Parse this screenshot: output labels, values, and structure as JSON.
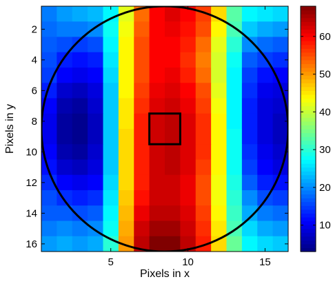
{
  "chart_data": {
    "type": "heatmap",
    "title": "",
    "xlabel": "Pixels in x",
    "ylabel": "Pixels in y",
    "xlim": [
      0.5,
      16.5
    ],
    "ylim": [
      0.5,
      16.5
    ],
    "y_direction": "reversed",
    "x_ticks": [
      5,
      10,
      15
    ],
    "y_ticks": [
      2,
      4,
      6,
      8,
      10,
      12,
      14,
      16
    ],
    "colormap": "jet",
    "clim": [
      3,
      68
    ],
    "colorbar_ticks": [
      10,
      20,
      30,
      40,
      50,
      60
    ],
    "colors": {
      "axis": "#000000",
      "overlay": "#000000"
    },
    "grid": false,
    "overlays": {
      "circle": {
        "center_x": 8.5,
        "center_y": 8.5,
        "radius": 8
      },
      "square": {
        "x_min": 7.5,
        "x_max": 9.5,
        "y_min": 7.5,
        "y_max": 9.5
      }
    },
    "values": [
      [
        19,
        21,
        22,
        23,
        27,
        42,
        53,
        60,
        62,
        60,
        56,
        46,
        33,
        27,
        26,
        25
      ],
      [
        18,
        19,
        19,
        20,
        28,
        43,
        54,
        60,
        61,
        59,
        55,
        44,
        32,
        24,
        22,
        21
      ],
      [
        17,
        16,
        15,
        16,
        27,
        44,
        55,
        60,
        60,
        58,
        53,
        42,
        30,
        20,
        18,
        17
      ],
      [
        16,
        13,
        12,
        13,
        26,
        44,
        55,
        60,
        60,
        57,
        52,
        41,
        28,
        17,
        15,
        14
      ],
      [
        15,
        11,
        10,
        11,
        25,
        44,
        55,
        60,
        61,
        58,
        53,
        41,
        27,
        15,
        12,
        11
      ],
      [
        13,
        8,
        7,
        9,
        24,
        44,
        56,
        61,
        62,
        60,
        55,
        42,
        27,
        14,
        10,
        9
      ],
      [
        11,
        6,
        5,
        8,
        24,
        45,
        57,
        62,
        63,
        61,
        56,
        43,
        27,
        13,
        9,
        8
      ],
      [
        10,
        5,
        4,
        7,
        24,
        45,
        58,
        63,
        64,
        62,
        57,
        44,
        27,
        13,
        9,
        7
      ],
      [
        10,
        5,
        4,
        7,
        24,
        46,
        58,
        63,
        64,
        62,
        57,
        44,
        28,
        13,
        9,
        7
      ],
      [
        11,
        6,
        5,
        8,
        24,
        46,
        58,
        63,
        64,
        62,
        57,
        44,
        28,
        14,
        10,
        8
      ],
      [
        12,
        8,
        7,
        9,
        24,
        46,
        58,
        63,
        64,
        62,
        56,
        44,
        28,
        15,
        11,
        9
      ],
      [
        14,
        11,
        10,
        11,
        25,
        46,
        58,
        63,
        63,
        61,
        55,
        43,
        29,
        17,
        13,
        12
      ],
      [
        16,
        14,
        13,
        14,
        26,
        47,
        59,
        63,
        63,
        61,
        55,
        43,
        30,
        20,
        16,
        15
      ],
      [
        17,
        17,
        16,
        17,
        27,
        48,
        61,
        64,
        64,
        62,
        56,
        44,
        31,
        22,
        19,
        18
      ],
      [
        19,
        20,
        19,
        20,
        28,
        49,
        63,
        66,
        66,
        63,
        57,
        45,
        32,
        25,
        22,
        21
      ],
      [
        21,
        22,
        21,
        22,
        30,
        50,
        64,
        68,
        68,
        64,
        58,
        46,
        34,
        27,
        25,
        24
      ]
    ]
  }
}
